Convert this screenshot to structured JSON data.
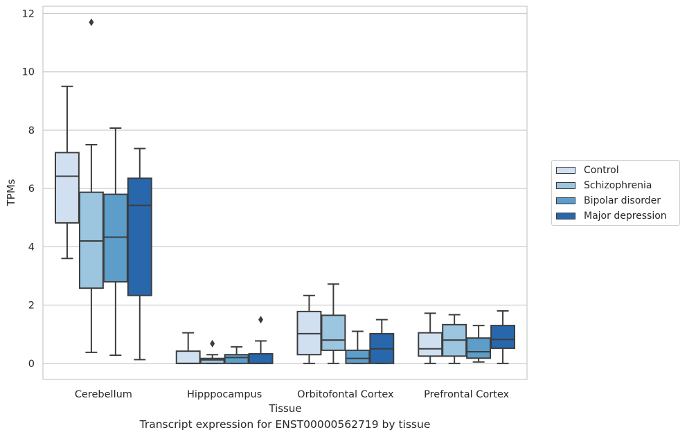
{
  "caption": "Transcript expression for ENST00000562719 by tissue",
  "chart_data": {
    "type": "box",
    "xlabel": "Tissue",
    "ylabel": "TPMs",
    "ylim": [
      -0.55,
      12.25
    ],
    "yticks": [
      0,
      2,
      4,
      6,
      8,
      10,
      12
    ],
    "grid": "horizontal",
    "legend_position": "right",
    "categories": [
      "Cerebellum",
      "Hipppocampus",
      "Orbitofontal Cortex",
      "Prefrontal Cortex"
    ],
    "series": [
      {
        "name": "Control",
        "color": "#d0e0f1",
        "boxes": [
          {
            "whisker_low": 3.6,
            "q1": 4.82,
            "median": 6.42,
            "q3": 7.23,
            "whisker_high": 9.5,
            "outliers": []
          },
          {
            "whisker_low": 0.0,
            "q1": 0.0,
            "median": 0.0,
            "q3": 0.42,
            "whisker_high": 1.05,
            "outliers": []
          },
          {
            "whisker_low": 0.0,
            "q1": 0.3,
            "median": 1.02,
            "q3": 1.78,
            "whisker_high": 2.33,
            "outliers": []
          },
          {
            "whisker_low": 0.0,
            "q1": 0.25,
            "median": 0.5,
            "q3": 1.05,
            "whisker_high": 1.72,
            "outliers": []
          }
        ]
      },
      {
        "name": "Schizophrenia",
        "color": "#9cc5df",
        "boxes": [
          {
            "whisker_low": 0.38,
            "q1": 2.58,
            "median": 4.2,
            "q3": 5.87,
            "whisker_high": 7.5,
            "outliers": [
              11.7
            ]
          },
          {
            "whisker_low": 0.0,
            "q1": 0.0,
            "median": 0.12,
            "q3": 0.17,
            "whisker_high": 0.3,
            "outliers": [
              0.68
            ]
          },
          {
            "whisker_low": 0.0,
            "q1": 0.45,
            "median": 0.8,
            "q3": 1.65,
            "whisker_high": 2.72,
            "outliers": []
          },
          {
            "whisker_low": 0.0,
            "q1": 0.25,
            "median": 0.8,
            "q3": 1.33,
            "whisker_high": 1.67,
            "outliers": []
          }
        ]
      },
      {
        "name": "Bipolar disorder",
        "color": "#5c9ec9",
        "boxes": [
          {
            "whisker_low": 0.28,
            "q1": 2.8,
            "median": 4.33,
            "q3": 5.8,
            "whisker_high": 8.07,
            "outliers": []
          },
          {
            "whisker_low": 0.0,
            "q1": 0.0,
            "median": 0.2,
            "q3": 0.3,
            "whisker_high": 0.57,
            "outliers": []
          },
          {
            "whisker_low": 0.0,
            "q1": 0.0,
            "median": 0.17,
            "q3": 0.45,
            "whisker_high": 1.1,
            "outliers": []
          },
          {
            "whisker_low": 0.05,
            "q1": 0.18,
            "median": 0.4,
            "q3": 0.87,
            "whisker_high": 1.3,
            "outliers": []
          }
        ]
      },
      {
        "name": "Major depression",
        "color": "#2867ab",
        "boxes": [
          {
            "whisker_low": 0.13,
            "q1": 2.33,
            "median": 5.42,
            "q3": 6.35,
            "whisker_high": 7.37,
            "outliers": []
          },
          {
            "whisker_low": 0.0,
            "q1": 0.0,
            "median": 0.0,
            "q3": 0.33,
            "whisker_high": 0.77,
            "outliers": [
              1.5
            ]
          },
          {
            "whisker_low": 0.0,
            "q1": 0.0,
            "median": 0.5,
            "q3": 1.02,
            "whisker_high": 1.5,
            "outliers": []
          },
          {
            "whisker_low": 0.0,
            "q1": 0.52,
            "median": 0.82,
            "q3": 1.3,
            "whisker_high": 1.8,
            "outliers": []
          }
        ]
      }
    ]
  }
}
